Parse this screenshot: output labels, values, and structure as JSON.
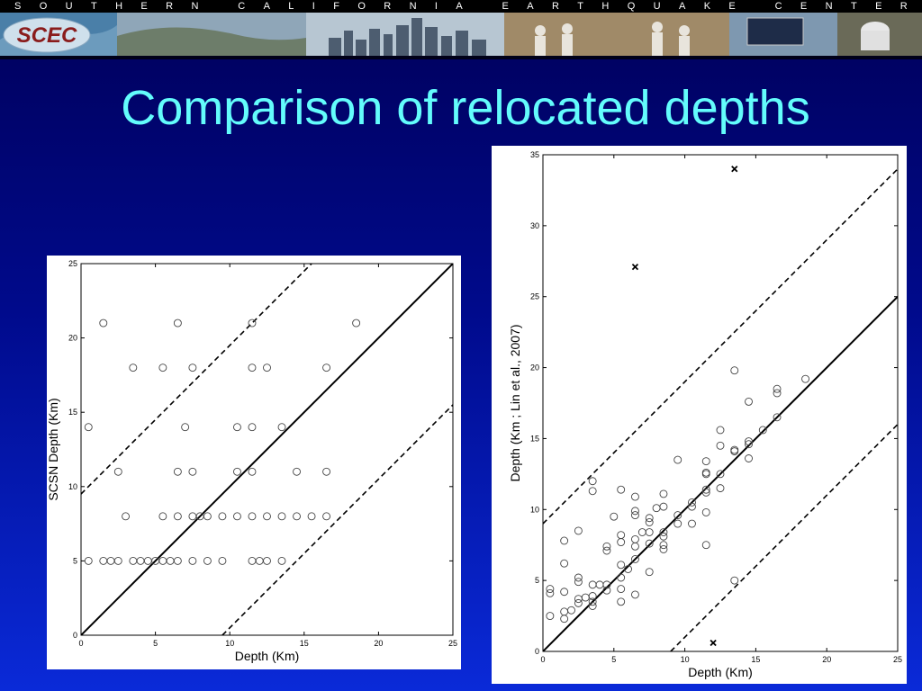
{
  "banner": {
    "letters": [
      "S",
      "O",
      "U",
      "T",
      "H",
      "E",
      "R",
      "N",
      " ",
      "C",
      "A",
      "L",
      "I",
      "F",
      "O",
      "R",
      "N",
      "I",
      "A",
      " ",
      "E",
      "A",
      "R",
      "T",
      "H",
      "Q",
      "U",
      "A",
      "K",
      "E",
      " ",
      "C",
      "E",
      "N",
      "T",
      "E",
      "R"
    ],
    "logo": "SCEC"
  },
  "title": "Comparison of relocated depths",
  "chart_data": [
    {
      "type": "scatter",
      "xlabel": "Depth (Km)",
      "ylabel": "SCSN Depth (Km)",
      "xlim": [
        0,
        25
      ],
      "ylim": [
        0,
        25
      ],
      "xticks": [
        "0",
        "5",
        "10",
        "15",
        "20",
        "25"
      ],
      "yticks": [
        "0",
        "5",
        "10",
        "15",
        "20",
        "25"
      ],
      "lines": [
        {
          "style": "solid",
          "x": [
            0,
            25
          ],
          "y": [
            0,
            25
          ]
        },
        {
          "style": "dashed",
          "x": [
            0,
            15.5
          ],
          "y": [
            9.5,
            25
          ]
        },
        {
          "style": "dashed",
          "x": [
            9.5,
            25
          ],
          "y": [
            0,
            15.5
          ]
        }
      ],
      "points": [
        [
          0.5,
          5
        ],
        [
          1.5,
          5
        ],
        [
          2,
          5
        ],
        [
          2.5,
          5
        ],
        [
          3.5,
          5
        ],
        [
          4,
          5
        ],
        [
          4.5,
          5
        ],
        [
          5,
          5
        ],
        [
          5.5,
          5
        ],
        [
          6,
          5
        ],
        [
          6.5,
          5
        ],
        [
          7.5,
          5
        ],
        [
          8.5,
          5
        ],
        [
          9.5,
          5
        ],
        [
          11.5,
          5
        ],
        [
          12,
          5
        ],
        [
          12.5,
          5
        ],
        [
          13.5,
          5
        ],
        [
          3,
          8
        ],
        [
          5.5,
          8
        ],
        [
          6.5,
          8
        ],
        [
          7.5,
          8
        ],
        [
          8,
          8
        ],
        [
          8.5,
          8
        ],
        [
          9.5,
          8
        ],
        [
          10.5,
          8
        ],
        [
          11.5,
          8
        ],
        [
          12.5,
          8
        ],
        [
          13.5,
          8
        ],
        [
          14.5,
          8
        ],
        [
          15.5,
          8
        ],
        [
          16.5,
          8
        ],
        [
          2.5,
          11
        ],
        [
          6.5,
          11
        ],
        [
          7.5,
          11
        ],
        [
          10.5,
          11
        ],
        [
          11.5,
          11
        ],
        [
          14.5,
          11
        ],
        [
          16.5,
          11
        ],
        [
          0.5,
          14
        ],
        [
          7,
          14
        ],
        [
          10.5,
          14
        ],
        [
          11.5,
          14
        ],
        [
          13.5,
          14
        ],
        [
          3.5,
          18
        ],
        [
          5.5,
          18
        ],
        [
          7.5,
          18
        ],
        [
          11.5,
          18
        ],
        [
          12.5,
          18
        ],
        [
          16.5,
          18
        ],
        [
          1.5,
          21
        ],
        [
          6.5,
          21
        ],
        [
          11.5,
          21
        ],
        [
          18.5,
          21
        ]
      ]
    },
    {
      "type": "scatter",
      "xlabel": "Depth (Km)",
      "ylabel": "Depth (Km ; Lin et al., 2007)",
      "xlim": [
        0,
        25
      ],
      "ylim": [
        0,
        35
      ],
      "xticks": [
        "0",
        "5",
        "10",
        "15",
        "20",
        "25"
      ],
      "yticks": [
        "0",
        "5",
        "10",
        "15",
        "20",
        "25",
        "30",
        "35"
      ],
      "lines": [
        {
          "style": "solid",
          "x": [
            0,
            25
          ],
          "y": [
            0,
            25
          ]
        },
        {
          "style": "dashed",
          "x": [
            0,
            25
          ],
          "y": [
            9,
            34
          ]
        },
        {
          "style": "dashed",
          "x": [
            9,
            25
          ],
          "y": [
            0,
            16
          ]
        }
      ],
      "outliers": [
        [
          6.5,
          27.1
        ],
        [
          13.5,
          34
        ],
        [
          12,
          0.6
        ]
      ],
      "points": [
        [
          0.5,
          4.4
        ],
        [
          0.5,
          4.1
        ],
        [
          0.5,
          2.5
        ],
        [
          1.5,
          7.8
        ],
        [
          1.5,
          6.2
        ],
        [
          1.5,
          4.2
        ],
        [
          1.5,
          2.8
        ],
        [
          1.5,
          2.3
        ],
        [
          2,
          2.9
        ],
        [
          2.5,
          8.5
        ],
        [
          2.5,
          5.2
        ],
        [
          2.5,
          4.9
        ],
        [
          2.5,
          3.7
        ],
        [
          2.5,
          3.4
        ],
        [
          3,
          3.8
        ],
        [
          3.5,
          12
        ],
        [
          3.5,
          11.3
        ],
        [
          3.5,
          4.7
        ],
        [
          3.5,
          3.9
        ],
        [
          3.5,
          3.5
        ],
        [
          3.5,
          3.2
        ],
        [
          4,
          4.7
        ],
        [
          4.5,
          7.4
        ],
        [
          4.5,
          7.1
        ],
        [
          4.5,
          4.7
        ],
        [
          4.5,
          4.3
        ],
        [
          5,
          9.5
        ],
        [
          5.5,
          11.4
        ],
        [
          5.5,
          8.2
        ],
        [
          5.5,
          7.7
        ],
        [
          5.5,
          6.1
        ],
        [
          5.5,
          5.2
        ],
        [
          5.5,
          4.4
        ],
        [
          5.5,
          3.5
        ],
        [
          6,
          5.8
        ],
        [
          6.5,
          10.9
        ],
        [
          6.5,
          9.9
        ],
        [
          6.5,
          9.6
        ],
        [
          6.5,
          7.9
        ],
        [
          6.5,
          7.4
        ],
        [
          6.5,
          6.5
        ],
        [
          6.5,
          4
        ],
        [
          7,
          8.4
        ],
        [
          7.5,
          9.4
        ],
        [
          7.5,
          9.1
        ],
        [
          7.5,
          8.4
        ],
        [
          7.5,
          7.6
        ],
        [
          7.5,
          5.6
        ],
        [
          8,
          10.1
        ],
        [
          8.5,
          11.1
        ],
        [
          8.5,
          10.2
        ],
        [
          8.5,
          8.4
        ],
        [
          8.5,
          8.1
        ],
        [
          8.5,
          7.5
        ],
        [
          8.5,
          7.2
        ],
        [
          9.5,
          13.5
        ],
        [
          9.5,
          9.6
        ],
        [
          9.5,
          9
        ],
        [
          10.5,
          10.5
        ],
        [
          10.5,
          10.2
        ],
        [
          10.5,
          9
        ],
        [
          11.5,
          13.4
        ],
        [
          11.5,
          12.6
        ],
        [
          11.5,
          12.5
        ],
        [
          11.5,
          11.4
        ],
        [
          11.5,
          11.2
        ],
        [
          11.5,
          9.8
        ],
        [
          11.5,
          7.5
        ],
        [
          12.5,
          15.6
        ],
        [
          12.5,
          14.5
        ],
        [
          12.5,
          12.5
        ],
        [
          12.5,
          11.5
        ],
        [
          13.5,
          19.8
        ],
        [
          13.5,
          14.2
        ],
        [
          13.5,
          14.1
        ],
        [
          13.5,
          5
        ],
        [
          14.5,
          17.6
        ],
        [
          14.5,
          14.8
        ],
        [
          14.5,
          14.6
        ],
        [
          14.5,
          13.6
        ],
        [
          15.5,
          15.6
        ],
        [
          16.5,
          18.5
        ],
        [
          16.5,
          18.2
        ],
        [
          16.5,
          16.5
        ],
        [
          18.5,
          19.2
        ]
      ]
    }
  ]
}
